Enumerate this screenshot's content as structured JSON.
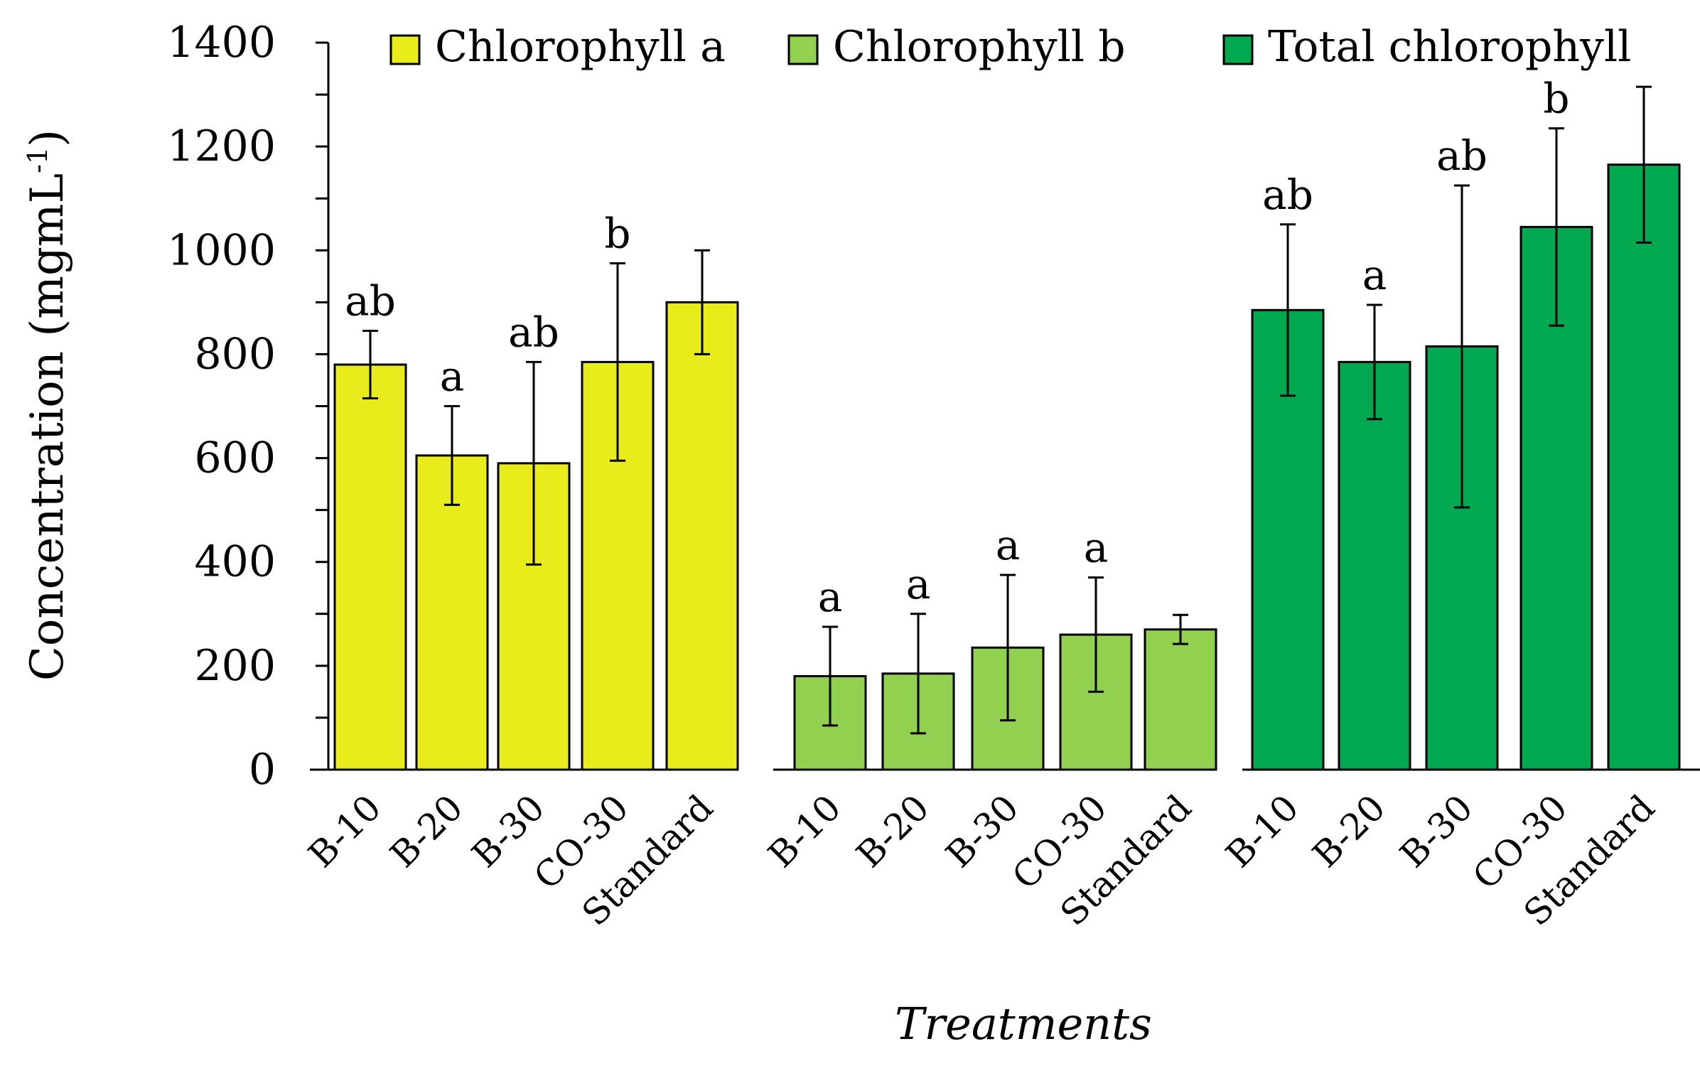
{
  "chart_data": {
    "type": "bar",
    "ylabel": "Concentration (mgmL",
    "ylabel_superscript": "-1",
    "ylabel_close": ")",
    "xlabel": "Treatments",
    "ylim": [
      0,
      1400
    ],
    "yticks": [
      0,
      200,
      400,
      600,
      800,
      1000,
      1200,
      1400
    ],
    "yticks_text": [
      "0",
      "200",
      "400",
      "600",
      "800",
      "1000",
      "1200",
      "1400"
    ],
    "legend_position": "top",
    "categories": [
      "B-10",
      "B-20",
      "B-30",
      "CO-30",
      "Standard"
    ],
    "series": [
      {
        "name": "Chlorophyll a",
        "color": "#e8ec1a",
        "values": [
          780,
          605,
          590,
          785,
          900
        ],
        "errors": [
          65,
          95,
          195,
          190,
          100
        ],
        "labels": [
          "ab",
          "a",
          "ab",
          "b",
          ""
        ]
      },
      {
        "name": "Chlorophyll b",
        "color": "#92d050",
        "values": [
          180,
          185,
          235,
          260,
          270
        ],
        "errors": [
          95,
          115,
          140,
          110,
          28
        ],
        "labels": [
          "a",
          "a",
          "a",
          "a",
          ""
        ]
      },
      {
        "name": "Total chlorophyll",
        "color": "#00a84f",
        "values": [
          885,
          785,
          815,
          1045,
          1165
        ],
        "errors": [
          165,
          110,
          310,
          190,
          150
        ],
        "labels": [
          "ab",
          "a",
          "ab",
          "b",
          ""
        ]
      }
    ]
  }
}
